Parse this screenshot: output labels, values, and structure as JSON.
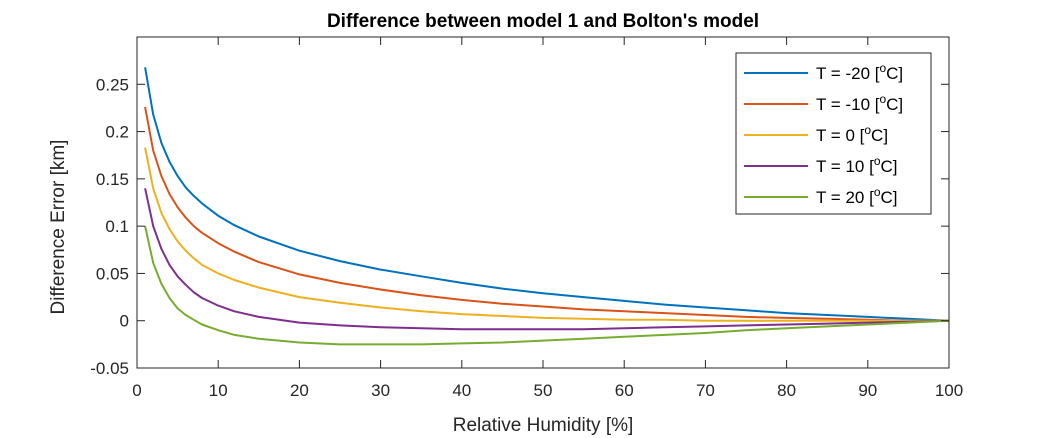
{
  "chart_data": {
    "type": "line",
    "title": "Difference between model 1 and Bolton's model",
    "xlabel": "Relative Humidity [%]",
    "ylabel": "Difference Error [km]",
    "xlim": [
      0,
      100
    ],
    "ylim": [
      -0.05,
      0.3
    ],
    "xticks": [
      0,
      10,
      20,
      30,
      40,
      50,
      60,
      70,
      80,
      90,
      100
    ],
    "xtick_labels": [
      "0",
      "10",
      "20",
      "30",
      "40",
      "50",
      "60",
      "70",
      "80",
      "90",
      "100"
    ],
    "yticks": [
      -0.05,
      0,
      0.05,
      0.1,
      0.15,
      0.2,
      0.25
    ],
    "ytick_labels": [
      "-0.05",
      "0",
      "0.05",
      "0.1",
      "0.15",
      "0.2",
      "0.25"
    ],
    "grid": false,
    "legend_position": "top-right",
    "x": [
      1,
      2,
      3,
      4,
      5,
      6,
      7,
      8,
      10,
      12,
      15,
      20,
      25,
      30,
      35,
      40,
      45,
      50,
      55,
      60,
      65,
      70,
      75,
      80,
      85,
      90,
      95,
      100
    ],
    "series": [
      {
        "name": "T = -20 [",
        "color": "#0072bd",
        "values": [
          0.268,
          0.218,
          0.188,
          0.168,
          0.153,
          0.141,
          0.132,
          0.124,
          0.111,
          0.101,
          0.089,
          0.074,
          0.063,
          0.054,
          0.047,
          0.04,
          0.034,
          0.029,
          0.025,
          0.021,
          0.017,
          0.014,
          0.011,
          0.008,
          0.006,
          0.004,
          0.002,
          0.0
        ]
      },
      {
        "name": "T = -10 [",
        "color": "#d95319",
        "values": [
          0.226,
          0.18,
          0.153,
          0.134,
          0.12,
          0.109,
          0.1,
          0.093,
          0.082,
          0.073,
          0.062,
          0.049,
          0.04,
          0.033,
          0.027,
          0.022,
          0.018,
          0.015,
          0.012,
          0.01,
          0.008,
          0.006,
          0.004,
          0.003,
          0.002,
          0.001,
          0.0,
          0.0
        ]
      },
      {
        "name": "T = 0 [",
        "color": "#edb120",
        "values": [
          0.183,
          0.14,
          0.114,
          0.097,
          0.084,
          0.074,
          0.066,
          0.059,
          0.05,
          0.043,
          0.035,
          0.025,
          0.019,
          0.014,
          0.01,
          0.007,
          0.005,
          0.003,
          0.002,
          0.001,
          0.001,
          0.0,
          0.0,
          0.0,
          0.0,
          0.0,
          0.0,
          0.0
        ]
      },
      {
        "name": "T = 10 [",
        "color": "#7e2f8e",
        "values": [
          0.14,
          0.1,
          0.076,
          0.059,
          0.047,
          0.038,
          0.03,
          0.024,
          0.016,
          0.01,
          0.004,
          -0.002,
          -0.005,
          -0.007,
          -0.008,
          -0.009,
          -0.009,
          -0.009,
          -0.009,
          -0.008,
          -0.007,
          -0.006,
          -0.005,
          -0.004,
          -0.003,
          -0.002,
          -0.001,
          0.0
        ]
      },
      {
        "name": "T = 20 [",
        "color": "#77ac30",
        "values": [
          0.1,
          0.061,
          0.039,
          0.024,
          0.013,
          0.006,
          0.001,
          -0.004,
          -0.01,
          -0.015,
          -0.019,
          -0.023,
          -0.025,
          -0.025,
          -0.025,
          -0.024,
          -0.023,
          -0.021,
          -0.019,
          -0.017,
          -0.015,
          -0.013,
          -0.01,
          -0.008,
          -0.006,
          -0.004,
          -0.002,
          0.0
        ]
      }
    ],
    "legend_unit_sup": "o",
    "legend_unit_after": "C]"
  }
}
